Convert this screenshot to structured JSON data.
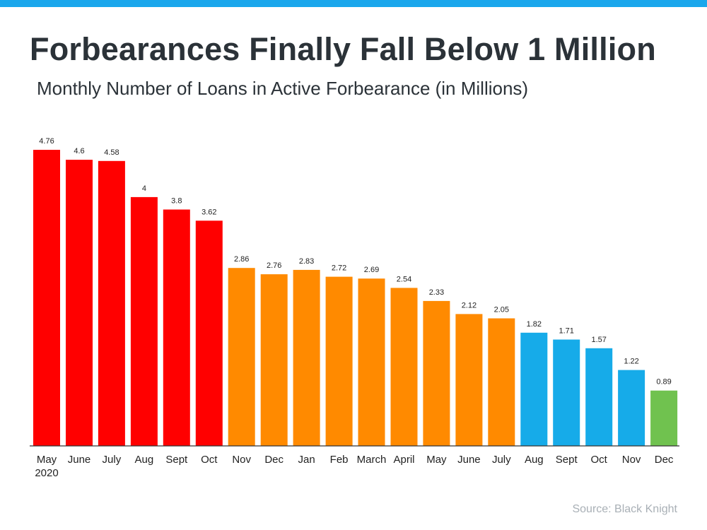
{
  "title": "Forbearances Finally Fall Below 1 Million",
  "subtitle": "Monthly Number of Loans in Active Forbearance (in Millions)",
  "source": "Source: Black Knight",
  "colors": {
    "top_bar": "#1aa7ec",
    "red": "#ff0000",
    "orange": "#ff8a00",
    "blue": "#16abe9",
    "green": "#70c24f"
  },
  "chart_data": {
    "type": "bar",
    "title": "Forbearances Finally Fall Below 1 Million",
    "subtitle": "Monthly Number of Loans in Active Forbearance (in Millions)",
    "xlabel": "",
    "ylabel": "",
    "ylim": [
      0,
      4.76
    ],
    "grid": false,
    "legend": "none",
    "categories": [
      [
        "May",
        "2020"
      ],
      [
        "June"
      ],
      [
        "July"
      ],
      [
        "Aug"
      ],
      [
        "Sept"
      ],
      [
        "Oct"
      ],
      [
        "Nov"
      ],
      [
        "Dec"
      ],
      [
        "Jan"
      ],
      [
        "Feb"
      ],
      [
        "March"
      ],
      [
        "April"
      ],
      [
        "May"
      ],
      [
        "June"
      ],
      [
        "July"
      ],
      [
        "Aug"
      ],
      [
        "Sept"
      ],
      [
        "Oct"
      ],
      [
        "Nov"
      ],
      [
        "Dec"
      ]
    ],
    "values": [
      4.76,
      4.6,
      4.58,
      4,
      3.8,
      3.62,
      2.86,
      2.76,
      2.83,
      2.72,
      2.69,
      2.54,
      2.33,
      2.12,
      2.05,
      1.82,
      1.71,
      1.57,
      1.22,
      0.89
    ],
    "value_labels": [
      "4.76",
      "4.6",
      "4.58",
      "4",
      "3.8",
      "3.62",
      "2.86",
      "2.76",
      "2.83",
      "2.72",
      "2.69",
      "2.54",
      "2.33",
      "2.12",
      "2.05",
      "1.82",
      "1.71",
      "1.57",
      "1.22",
      "0.89"
    ],
    "bar_colors": [
      "#ff0000",
      "#ff0000",
      "#ff0000",
      "#ff0000",
      "#ff0000",
      "#ff0000",
      "#ff8a00",
      "#ff8a00",
      "#ff8a00",
      "#ff8a00",
      "#ff8a00",
      "#ff8a00",
      "#ff8a00",
      "#ff8a00",
      "#ff8a00",
      "#16abe9",
      "#16abe9",
      "#16abe9",
      "#16abe9",
      "#70c24f"
    ]
  }
}
